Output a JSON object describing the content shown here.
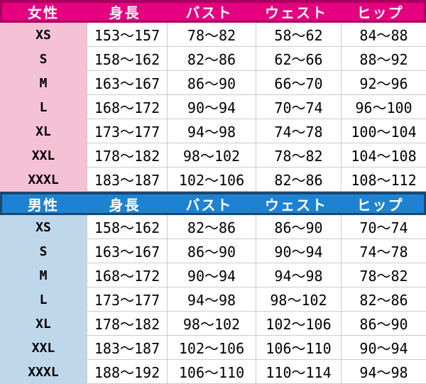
{
  "chart_data": [
    {
      "type": "table",
      "gender_header": "女性",
      "column_headers": [
        "身長",
        "バスト",
        "ウェスト",
        "ヒップ"
      ],
      "sizes": [
        "XS",
        "S",
        "M",
        "L",
        "XL",
        "XXL",
        "XXXL"
      ],
      "rows": [
        [
          "153～157",
          "78～82",
          "58～62",
          "84～88"
        ],
        [
          "158～162",
          "82～86",
          "62～66",
          "88～92"
        ],
        [
          "163～167",
          "86～90",
          "66～70",
          "92～96"
        ],
        [
          "168～172",
          "90～94",
          "70～74",
          "96～100"
        ],
        [
          "173～177",
          "94～98",
          "74～78",
          "100～104"
        ],
        [
          "178～182",
          "98～102",
          "78～82",
          "104～108"
        ],
        [
          "183～187",
          "102～106",
          "82～86",
          "108～112"
        ]
      ],
      "colors": {
        "header_bg": "#E4007F",
        "header_border": "#A80060",
        "header_text": "#FFFFFF",
        "label_column_bg": "#F5C1D5"
      }
    },
    {
      "type": "table",
      "gender_header": "男性",
      "column_headers": [
        "身長",
        "バスト",
        "ウェスト",
        "ヒップ"
      ],
      "sizes": [
        "XS",
        "S",
        "M",
        "L",
        "XL",
        "XXL",
        "XXXL"
      ],
      "rows": [
        [
          "158～162",
          "82～86",
          "86～90",
          "70～74"
        ],
        [
          "163～167",
          "86～90",
          "90～94",
          "74～78"
        ],
        [
          "168～172",
          "90～94",
          "94～98",
          "78～82"
        ],
        [
          "173～177",
          "94～98",
          "98～102",
          "82～86"
        ],
        [
          "178～182",
          "98～102",
          "102～106",
          "86～90"
        ],
        [
          "183～187",
          "102～106",
          "106～110",
          "90～94"
        ],
        [
          "188～192",
          "106～110",
          "110～114",
          "94～98"
        ]
      ],
      "colors": {
        "header_bg": "#1E82D2",
        "header_border": "#1A4873",
        "header_text": "#FFFFFF",
        "label_column_bg": "#BED7EB"
      }
    }
  ],
  "style": {
    "divider_color": "#CCCCCC",
    "text_color": "#000000",
    "bottom_border_color": "#46719C"
  }
}
